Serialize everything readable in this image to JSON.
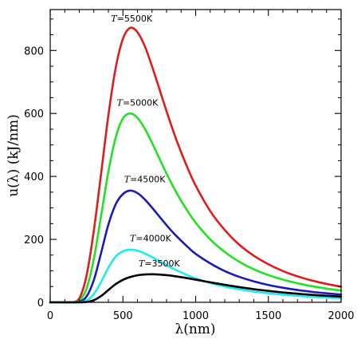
{
  "chart_data": {
    "type": "line",
    "xlabel": "λ(nm)",
    "ylabel": "u(λ)  (kJ/nm)",
    "xlim": [
      0,
      2000
    ],
    "ylim": [
      0,
      930
    ],
    "x_ticks": [
      0,
      500,
      1000,
      1500,
      2000
    ],
    "y_ticks": [
      0,
      200,
      400,
      600,
      800
    ],
    "grid": false,
    "legend": "none",
    "x": [
      0,
      100,
      150,
      200,
      250,
      300,
      350,
      400,
      450,
      500,
      550,
      600,
      650,
      700,
      750,
      800,
      850,
      900,
      950,
      1000,
      1100,
      1200,
      1300,
      1400,
      1500,
      1600,
      1700,
      1800,
      1900,
      2000
    ],
    "series": [
      {
        "name": "T=5500K",
        "color": "#dd1c1c",
        "values": [
          0,
          0,
          0,
          12,
          85,
          228,
          409,
          594,
          744,
          837,
          872,
          858,
          814,
          750,
          679,
          607,
          539,
          477,
          421,
          371,
          290,
          230,
          183,
          148,
          121,
          99.4,
          82.6,
          69.2,
          58.4,
          49.7
        ]
      },
      {
        "name": "T=5000K",
        "color": "#22e022",
        "values": [
          0,
          0,
          0,
          4.9,
          44,
          138,
          275,
          415,
          523,
          584,
          600,
          586,
          552,
          507,
          458,
          409,
          364,
          323,
          286,
          253,
          200,
          160,
          129,
          105,
          86.6,
          72.1,
          60.5,
          51.2,
          43.6,
          37.5
        ]
      },
      {
        "name": "T=4500K",
        "color": "#1a1ab8",
        "values": [
          0,
          0,
          0,
          1.5,
          18.6,
          70.7,
          157,
          247,
          311,
          344,
          355,
          347,
          327,
          301,
          273,
          245,
          219,
          196,
          174,
          154,
          124,
          99.4,
          80.9,
          66.6,
          55.2,
          46.4,
          39.1,
          33.3,
          28.6,
          24.7
        ]
      },
      {
        "name": "T=4000K",
        "color": "#22e8f0",
        "values": [
          0,
          0,
          0,
          0.3,
          5.7,
          26.1,
          64.8,
          110,
          145,
          162,
          167,
          164,
          155,
          144,
          131,
          118,
          106,
          95.2,
          85.1,
          76.0,
          61.5,
          50.2,
          41.3,
          34.3,
          28.7,
          24.2,
          20.6,
          17.6,
          15.2,
          13.2
        ]
      },
      {
        "name": "T=3500K",
        "color": "#000000",
        "values": [
          0,
          0,
          0,
          0,
          1.1,
          6.7,
          20.1,
          39.1,
          57.7,
          71.4,
          80.4,
          85.9,
          88.6,
          89.2,
          88.3,
          86.2,
          83.4,
          79.9,
          76.1,
          72.0,
          63.6,
          55.6,
          48.3,
          41.8,
          36.3,
          31.4,
          27.3,
          23.8,
          20.8,
          18.3
        ]
      }
    ]
  }
}
